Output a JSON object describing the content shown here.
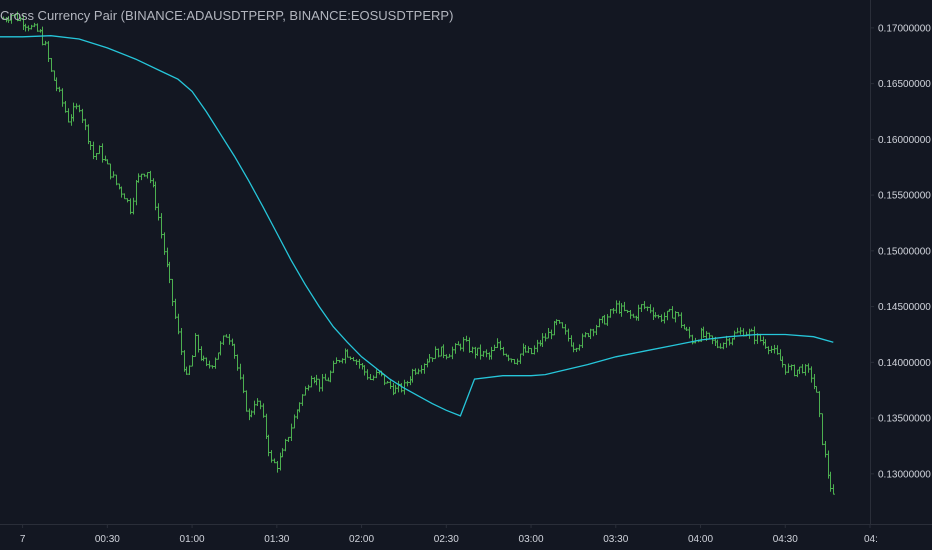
{
  "chart_title": "Cross Currency Pair (BINANCE:ADAUSDTPERP, BINANCE:EOSUSDTPERP)",
  "colors": {
    "background": "#131722",
    "bar_up": "#4caf50",
    "bar_down": "#4caf50",
    "moving_average": "#26c6da",
    "axis_line": "#2a2e39",
    "axis_text": "#d1d4dc"
  },
  "chart_data": {
    "type": "ohlc",
    "title": "Cross Currency Pair (BINANCE:ADAUSDTPERP, BINANCE:EOSUSDTPERP)",
    "xlabel": "",
    "ylabel": "",
    "x_tick_labels": [
      "7",
      "00:30",
      "01:00",
      "01:30",
      "02:00",
      "02:30",
      "03:00",
      "03:30",
      "04:00",
      "04:30",
      "04:"
    ],
    "x_tick_minutes": [
      0,
      30,
      60,
      90,
      120,
      150,
      180,
      210,
      240,
      270,
      300
    ],
    "y_tick_labels": [
      "0.17000000",
      "0.16500000",
      "0.16000000",
      "0.15500000",
      "0.15000000",
      "0.14500000",
      "0.14000000",
      "0.13500000",
      "0.13000000"
    ],
    "y_ticks": [
      0.17,
      0.165,
      0.16,
      0.155,
      0.15,
      0.145,
      0.14,
      0.135,
      0.13
    ],
    "ylim": [
      0.1255,
      0.1725
    ],
    "xlim_minutes": [
      -8,
      300
    ],
    "bar_interval_minutes": 1,
    "grid": false,
    "close_series": {
      "minutes": [
        -7,
        -4,
        0,
        3,
        6,
        8,
        10,
        13,
        16,
        18,
        20,
        22,
        24,
        25,
        27,
        30,
        33,
        36,
        38,
        40,
        42,
        44,
        46,
        48,
        50,
        52,
        54,
        56,
        58,
        60,
        61,
        63,
        65,
        67,
        68,
        70,
        72,
        74,
        76,
        78,
        80,
        82,
        84,
        86,
        88,
        90,
        92,
        94,
        96,
        98,
        100,
        102,
        105,
        108,
        111,
        114,
        117,
        120,
        123,
        126,
        129,
        132,
        135,
        138,
        141,
        144,
        147,
        150,
        153,
        156,
        159,
        162,
        165,
        168,
        171,
        174,
        177,
        180,
        183,
        186,
        189,
        192,
        195,
        198,
        201,
        204,
        207,
        210,
        213,
        216,
        219,
        222,
        225,
        228,
        231,
        234,
        237,
        240,
        243,
        246,
        249,
        252,
        255,
        258,
        261,
        264,
        267,
        270,
        273,
        276,
        279,
        281,
        283,
        285,
        287
      ],
      "values": [
        0.1708,
        0.1712,
        0.1706,
        0.17,
        0.1695,
        0.1683,
        0.166,
        0.164,
        0.1618,
        0.1625,
        0.163,
        0.161,
        0.1595,
        0.1585,
        0.159,
        0.1575,
        0.156,
        0.155,
        0.1538,
        0.156,
        0.157,
        0.1572,
        0.1555,
        0.153,
        0.15,
        0.147,
        0.144,
        0.141,
        0.1385,
        0.1405,
        0.142,
        0.1405,
        0.1395,
        0.14,
        0.1405,
        0.1415,
        0.1425,
        0.142,
        0.1395,
        0.137,
        0.135,
        0.1365,
        0.136,
        0.1335,
        0.131,
        0.1308,
        0.1318,
        0.1335,
        0.135,
        0.1365,
        0.1375,
        0.139,
        0.138,
        0.1385,
        0.14,
        0.141,
        0.1405,
        0.1395,
        0.1385,
        0.139,
        0.138,
        0.1375,
        0.1378,
        0.1392,
        0.1398,
        0.1405,
        0.141,
        0.1408,
        0.1412,
        0.1418,
        0.141,
        0.1408,
        0.1405,
        0.1415,
        0.1408,
        0.1402,
        0.141,
        0.1408,
        0.1418,
        0.1425,
        0.1435,
        0.1425,
        0.1415,
        0.142,
        0.143,
        0.1435,
        0.144,
        0.145,
        0.1445,
        0.144,
        0.145,
        0.1448,
        0.144,
        0.1442,
        0.1445,
        0.143,
        0.142,
        0.1425,
        0.142,
        0.1415,
        0.142,
        0.1425,
        0.1428,
        0.1425,
        0.142,
        0.1415,
        0.1405,
        0.1395,
        0.1392,
        0.1395,
        0.1388,
        0.137,
        0.133,
        0.13,
        0.1278
      ]
    },
    "moving_average": {
      "minutes": [
        -8,
        0,
        10,
        20,
        30,
        40,
        50,
        55,
        60,
        65,
        70,
        75,
        80,
        85,
        90,
        95,
        100,
        105,
        110,
        115,
        120,
        125,
        130,
        135,
        140,
        145,
        150,
        155,
        160,
        170,
        180,
        185,
        190,
        200,
        210,
        220,
        230,
        240,
        250,
        260,
        270,
        280,
        287
      ],
      "values": [
        0.1692,
        0.1692,
        0.1693,
        0.169,
        0.1682,
        0.1672,
        0.166,
        0.1654,
        0.1643,
        0.1625,
        0.1605,
        0.1585,
        0.1563,
        0.154,
        0.1516,
        0.1492,
        0.147,
        0.145,
        0.1432,
        0.1418,
        0.1405,
        0.1395,
        0.1385,
        0.1377,
        0.137,
        0.1363,
        0.1357,
        0.1352,
        0.1385,
        0.1388,
        0.1388,
        0.1389,
        0.1392,
        0.1398,
        0.1405,
        0.141,
        0.1415,
        0.142,
        0.1423,
        0.1425,
        0.1425,
        0.1423,
        0.1418
      ]
    }
  }
}
